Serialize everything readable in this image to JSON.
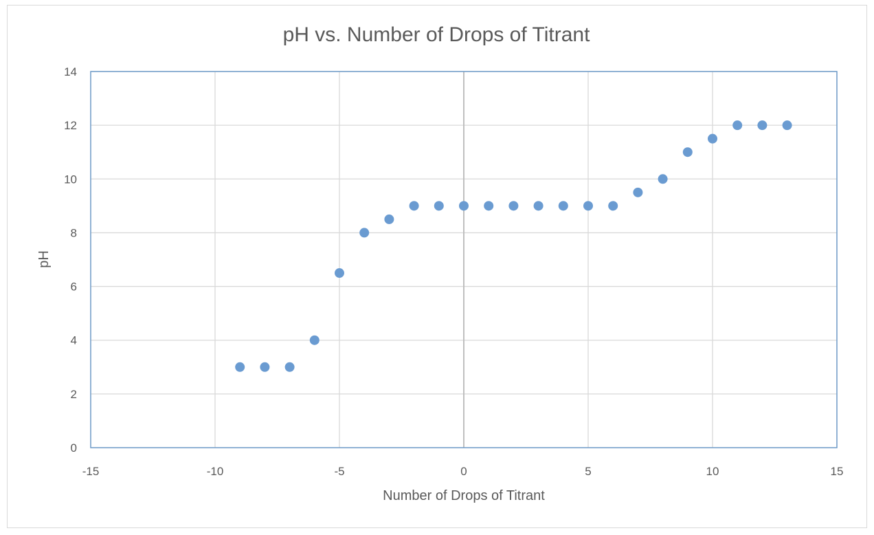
{
  "chart_data": {
    "type": "scatter",
    "title": "pH vs. Number of Drops of Titrant",
    "xlabel": "Number of Drops of Titrant",
    "ylabel": "pH",
    "xlim": [
      -15,
      15
    ],
    "ylim": [
      0,
      14
    ],
    "xticks": [
      -15,
      -10,
      -5,
      0,
      5,
      10,
      15
    ],
    "yticks": [
      0,
      2,
      4,
      6,
      8,
      10,
      12,
      14
    ],
    "grid": true,
    "legend": "none",
    "marker_color": "#6a9bd1",
    "x": [
      -9,
      -8,
      -7,
      -6,
      -5,
      -4,
      -3,
      -2,
      -1,
      0,
      1,
      2,
      3,
      4,
      5,
      6,
      7,
      8,
      9,
      10,
      11,
      12,
      13
    ],
    "y": [
      3,
      3,
      3,
      4,
      6.5,
      8,
      8.5,
      9,
      9,
      9,
      9,
      9,
      9,
      9,
      9,
      9,
      9.5,
      10,
      11,
      11.5,
      12,
      12,
      12
    ]
  }
}
